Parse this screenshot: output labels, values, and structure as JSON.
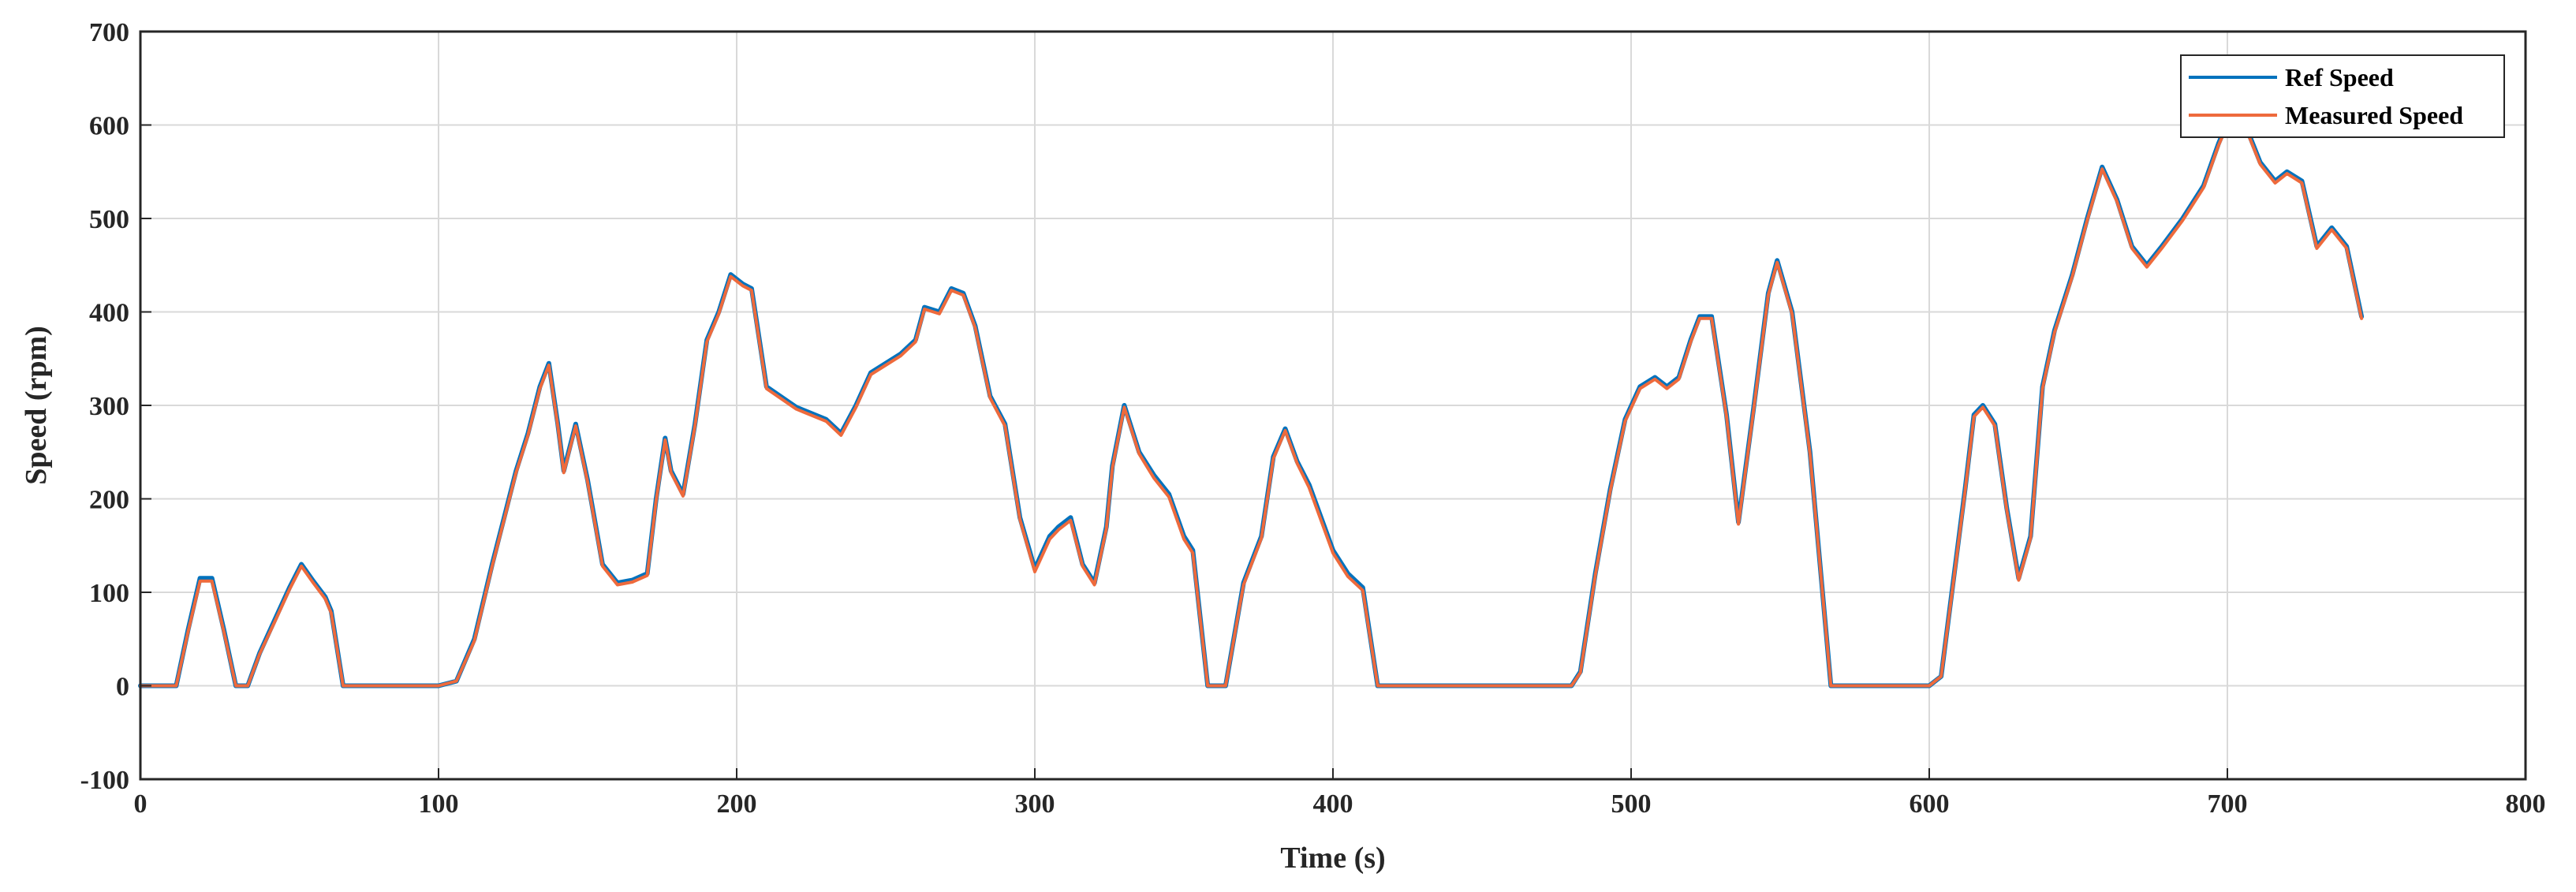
{
  "chart_data": {
    "type": "line",
    "title": "",
    "xlabel": "Time (s)",
    "ylabel": "Speed (rpm)",
    "xlim": [
      0,
      800
    ],
    "ylim": [
      -100,
      700
    ],
    "xticks": [
      0,
      100,
      200,
      300,
      400,
      500,
      600,
      700,
      800
    ],
    "yticks": [
      -100,
      0,
      100,
      200,
      300,
      400,
      500,
      600,
      700
    ],
    "grid": true,
    "legend_position": "top-right",
    "series": [
      {
        "name": "Ref Speed",
        "color": "#0072BD",
        "x": [
          0,
          12,
          16,
          20,
          24,
          28,
          32,
          36,
          40,
          45,
          50,
          54,
          58,
          62,
          64,
          68,
          100,
          106,
          112,
          118,
          122,
          126,
          130,
          134,
          137,
          140,
          142,
          146,
          150,
          155,
          160,
          165,
          170,
          173,
          176,
          178,
          182,
          186,
          190,
          194,
          198,
          202,
          205,
          210,
          220,
          230,
          235,
          240,
          245,
          250,
          255,
          260,
          263,
          268,
          272,
          276,
          280,
          285,
          290,
          295,
          300,
          305,
          308,
          312,
          316,
          320,
          324,
          326,
          330,
          335,
          340,
          345,
          350,
          353,
          358,
          364,
          370,
          376,
          380,
          384,
          388,
          392,
          396,
          400,
          405,
          410,
          415,
          480,
          483,
          488,
          493,
          498,
          503,
          508,
          512,
          516,
          520,
          523,
          527,
          532,
          536,
          541,
          546,
          549,
          554,
          560,
          567,
          600,
          604,
          608,
          612,
          615,
          618,
          622,
          626,
          630,
          634,
          638,
          642,
          648,
          653,
          658,
          663,
          668,
          673,
          678,
          685,
          692,
          697,
          701,
          706,
          711,
          716,
          720,
          725,
          730,
          735,
          740,
          745
        ],
        "y": [
          0,
          0,
          60,
          115,
          115,
          60,
          0,
          0,
          35,
          70,
          105,
          130,
          112,
          95,
          80,
          0,
          0,
          5,
          50,
          130,
          180,
          230,
          270,
          320,
          345,
          280,
          230,
          280,
          220,
          130,
          110,
          113,
          120,
          200,
          265,
          230,
          205,
          280,
          370,
          400,
          440,
          430,
          425,
          320,
          298,
          285,
          270,
          300,
          335,
          345,
          355,
          370,
          405,
          400,
          425,
          420,
          385,
          310,
          280,
          180,
          125,
          160,
          170,
          180,
          130,
          110,
          170,
          235,
          300,
          250,
          225,
          205,
          160,
          145,
          0,
          0,
          110,
          160,
          245,
          275,
          240,
          215,
          180,
          145,
          120,
          105,
          0,
          0,
          15,
          120,
          210,
          285,
          320,
          330,
          320,
          330,
          370,
          395,
          395,
          290,
          175,
          295,
          420,
          455,
          400,
          250,
          0,
          0,
          10,
          110,
          210,
          290,
          300,
          280,
          190,
          115,
          160,
          320,
          380,
          440,
          500,
          555,
          520,
          470,
          450,
          470,
          500,
          535,
          580,
          610,
          600,
          560,
          540,
          550,
          540,
          470,
          490,
          470,
          395
        ]
      },
      {
        "name": "Measured Speed",
        "color": "#EE6A3C",
        "x": [
          0,
          12,
          16,
          20,
          24,
          28,
          32,
          36,
          40,
          45,
          50,
          54,
          58,
          62,
          64,
          68,
          100,
          106,
          112,
          118,
          122,
          126,
          130,
          134,
          137,
          140,
          142,
          146,
          150,
          155,
          160,
          165,
          170,
          173,
          176,
          178,
          182,
          186,
          190,
          194,
          198,
          202,
          205,
          210,
          220,
          230,
          235,
          240,
          245,
          250,
          255,
          260,
          263,
          268,
          272,
          276,
          280,
          285,
          290,
          295,
          300,
          305,
          308,
          312,
          316,
          320,
          324,
          326,
          330,
          335,
          340,
          345,
          350,
          353,
          358,
          364,
          370,
          376,
          380,
          384,
          388,
          392,
          396,
          400,
          405,
          410,
          415,
          480,
          483,
          488,
          493,
          498,
          503,
          508,
          512,
          516,
          520,
          523,
          527,
          532,
          536,
          541,
          546,
          549,
          554,
          560,
          567,
          600,
          604,
          608,
          612,
          615,
          618,
          622,
          626,
          630,
          634,
          638,
          642,
          648,
          653,
          658,
          663,
          668,
          673,
          678,
          685,
          692,
          697,
          701,
          706,
          711,
          716,
          720,
          725,
          730,
          735,
          740,
          745
        ],
        "y": [
          0,
          0,
          58,
          112,
          112,
          58,
          0,
          0,
          34,
          68,
          103,
          128,
          110,
          93,
          78,
          0,
          0,
          5,
          48,
          128,
          178,
          228,
          268,
          318,
          343,
          278,
          228,
          278,
          218,
          128,
          108,
          111,
          118,
          198,
          263,
          228,
          203,
          278,
          368,
          398,
          438,
          428,
          423,
          318,
          296,
          283,
          268,
          298,
          333,
          343,
          353,
          368,
          403,
          398,
          423,
          418,
          383,
          308,
          278,
          178,
          122,
          157,
          167,
          177,
          128,
          108,
          168,
          233,
          298,
          248,
          222,
          202,
          157,
          142,
          0,
          0,
          108,
          158,
          243,
          273,
          238,
          212,
          177,
          142,
          117,
          102,
          0,
          0,
          14,
          118,
          208,
          283,
          318,
          328,
          318,
          328,
          368,
          393,
          393,
          288,
          173,
          293,
          418,
          453,
          398,
          248,
          0,
          0,
          10,
          108,
          208,
          288,
          298,
          278,
          188,
          113,
          158,
          318,
          378,
          438,
          498,
          553,
          518,
          468,
          448,
          468,
          498,
          533,
          578,
          608,
          598,
          558,
          538,
          548,
          538,
          468,
          488,
          468,
          393
        ]
      }
    ]
  }
}
